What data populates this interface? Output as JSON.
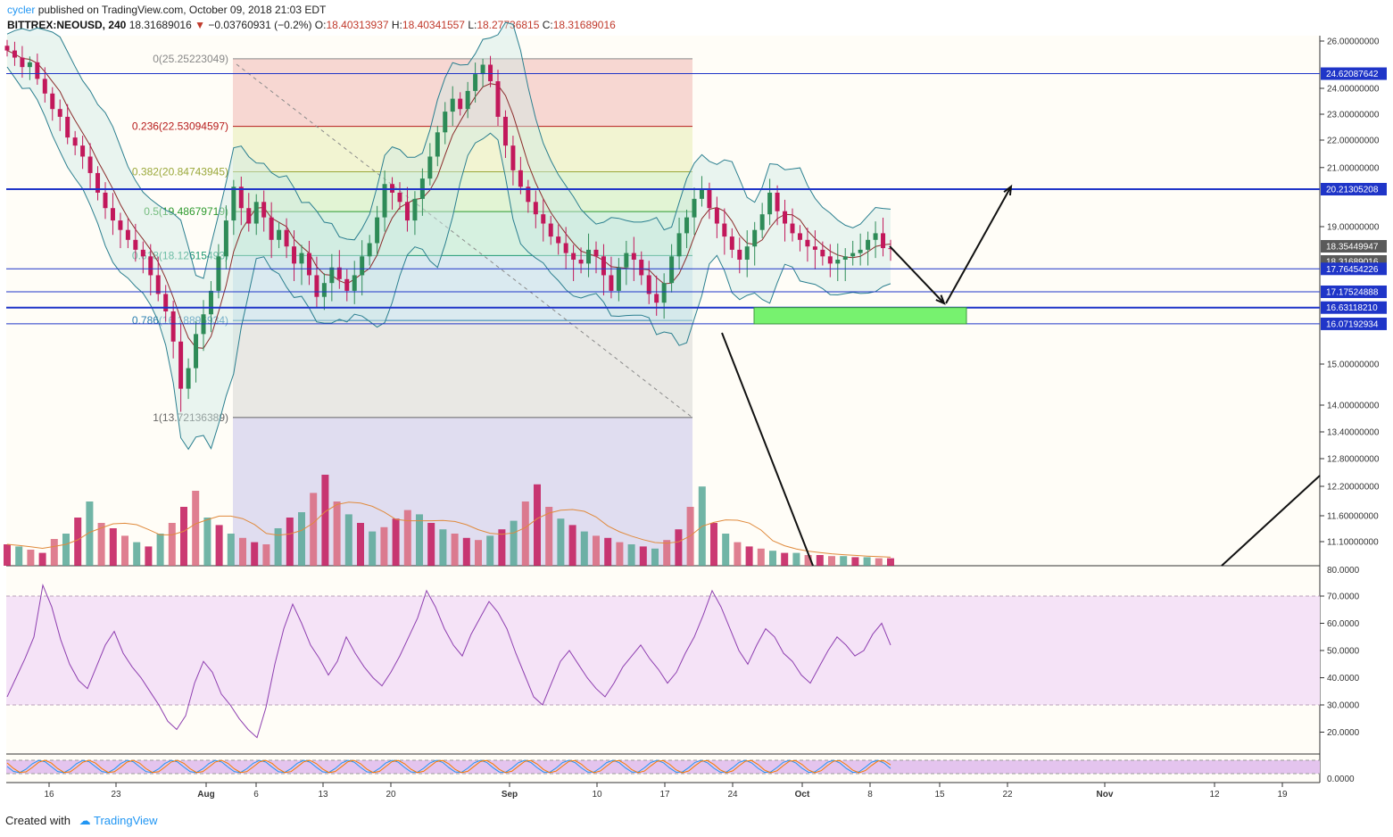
{
  "header": {
    "author": "cycler",
    "published": "published on TradingView.com, October 09, 2018 21:03 EDT",
    "symbol": "BITTREX:NEOUSD, 240",
    "last": "18.31689016",
    "change_arrow": "▼",
    "change": "−0.03760931 (−0.2%)",
    "o_label": "O:",
    "o": "18.40313937",
    "h_label": "H:",
    "h": "18.40341557",
    "l_label": "L:",
    "l": "18.27736815",
    "c_label": "C:",
    "c": "18.31689016"
  },
  "footer": {
    "created_with": "Created with",
    "brand": "TradingView"
  },
  "colors": {
    "background": "#fffdf7",
    "candle_up": "#2e8b57",
    "candle_down": "#c2185b",
    "bollinger": "#2b7f8f",
    "sma": "#8b2c2c",
    "hline": "#1f35c8",
    "tag_blue": "#1f35c8",
    "tag_dark": "#5a5a5a",
    "target_zone": "#77f26f",
    "rsi": "#8e3fb0",
    "rsi_band": "#f5e3f7",
    "stoch_band": "#e4c4ee"
  },
  "chart_data": {
    "type": "candlestick",
    "symbol": "BITTREX:NEOUSD",
    "interval": "240",
    "price_axis": {
      "ticks": [
        "26.00000000",
        "24.00000000",
        "23.00000000",
        "22.00000000",
        "21.00000000",
        "19.00000000",
        "15.00000000",
        "14.00000000",
        "13.40000000",
        "12.80000000",
        "12.20000000",
        "11.60000000",
        "11.10000000"
      ]
    },
    "volume_axis_label": "80.0000",
    "rsi_axis": {
      "ticks": [
        "70.0000",
        "60.0000",
        "50.0000",
        "40.0000",
        "30.0000",
        "20.0000"
      ]
    },
    "stoch_axis_label": "0.0000",
    "x_ticks": [
      "16",
      "23",
      "Aug",
      "6",
      "13",
      "20",
      "Sep",
      "10",
      "17",
      "24",
      "Oct",
      "8",
      "15",
      "22",
      "Nov",
      "12",
      "19"
    ],
    "fibonacci": [
      {
        "label": "0(25.25223049)",
        "ratio": 0,
        "price": 25.25223049,
        "color": "#888888",
        "fill": "#f4c9c6"
      },
      {
        "label": "0.236(22.53094597)",
        "ratio": 0.236,
        "price": 22.53094597,
        "color": "#b71c1c",
        "fill": "#eef0c6"
      },
      {
        "label": "0.382(20.84743945)",
        "ratio": 0.382,
        "price": 20.84743945,
        "color": "#9aa83a",
        "fill": "#d8f0c8"
      },
      {
        "label": "0.5(19.48679719)",
        "ratio": 0.5,
        "price": 19.48679719,
        "color": "#2e9a2e",
        "fill": "#c8ecd8"
      },
      {
        "label": "0.618(18.12615493)",
        "ratio": 0.618,
        "price": 18.12615493,
        "color": "#1f9a73",
        "fill": "#cde3ee"
      },
      {
        "label": "0.786(16.18896934)",
        "ratio": 0.786,
        "price": 16.18896934,
        "color": "#2b7fb0",
        "fill": "#e2e0de"
      },
      {
        "label": "1(13.72136389)",
        "ratio": 1,
        "price": 13.72136389,
        "color": "#666666",
        "fill": "#d5d2ee"
      }
    ],
    "horizontal_levels": [
      "24.62087642",
      "20.21305208",
      "17.76454226",
      "17.17524888",
      "16.63118210",
      "16.07192934"
    ],
    "price_tags": [
      {
        "text": "24.62087642",
        "kind": "blue"
      },
      {
        "text": "20.21305208",
        "kind": "blue"
      },
      {
        "text": "18.35449947",
        "kind": "dark"
      },
      {
        "text": "18.31689016",
        "kind": "dark"
      },
      {
        "text": "17.76454226",
        "kind": "blue"
      },
      {
        "text": "17.17524888",
        "kind": "blue"
      },
      {
        "text": "16.63118210",
        "kind": "blue"
      },
      {
        "text": "16.07192934",
        "kind": "blue"
      }
    ],
    "target_zone": {
      "low": 16.07192934,
      "high": 16.6311821
    },
    "closes": [
      25.6,
      25.3,
      24.9,
      25.1,
      24.4,
      23.8,
      23.2,
      22.9,
      22.1,
      21.8,
      21.4,
      20.8,
      20.1,
      19.6,
      19.2,
      18.9,
      18.6,
      18.3,
      18.1,
      17.6,
      17.1,
      16.5,
      15.6,
      14.4,
      14.9,
      15.8,
      16.4,
      17.2,
      18.1,
      19.2,
      20.3,
      19.6,
      19.1,
      19.8,
      19.3,
      18.6,
      18.9,
      18.4,
      17.9,
      18.2,
      17.6,
      17.0,
      17.4,
      17.8,
      17.5,
      17.2,
      17.6,
      18.1,
      18.5,
      19.3,
      20.4,
      20.1,
      19.8,
      19.2,
      19.9,
      20.6,
      21.4,
      22.3,
      23.1,
      23.6,
      23.2,
      23.9,
      24.6,
      25.0,
      24.3,
      22.9,
      21.8,
      20.9,
      20.3,
      19.8,
      19.4,
      19.1,
      18.7,
      18.5,
      18.2,
      18.0,
      17.9,
      18.3,
      18.1,
      17.6,
      17.2,
      17.8,
      18.2,
      18.0,
      17.6,
      17.1,
      16.8,
      17.4,
      18.1,
      18.8,
      19.3,
      19.9,
      20.2,
      19.6,
      19.1,
      18.7,
      18.3,
      18.0,
      18.4,
      18.9,
      19.4,
      20.1,
      19.5,
      19.1,
      18.8,
      18.6,
      18.4,
      18.3,
      18.1,
      17.9,
      18.0,
      18.1,
      18.2,
      18.3,
      18.6,
      18.8,
      18.35,
      18.32
    ],
    "rsi": [
      33,
      40,
      47,
      55,
      74,
      66,
      54,
      45,
      39,
      36,
      44,
      52,
      57,
      49,
      44,
      40,
      35,
      30,
      24,
      21,
      26,
      38,
      46,
      42,
      34,
      30,
      25,
      21,
      18,
      29,
      45,
      58,
      67,
      60,
      52,
      47,
      41,
      46,
      55,
      49,
      44,
      40,
      37,
      42,
      48,
      55,
      62,
      72,
      66,
      58,
      52,
      48,
      56,
      62,
      68,
      64,
      58,
      49,
      41,
      33,
      30,
      38,
      46,
      50,
      45,
      40,
      36,
      33,
      38,
      44,
      48,
      52,
      47,
      43,
      38,
      42,
      49,
      55,
      63,
      72,
      66,
      58,
      50,
      45,
      52,
      58,
      55,
      49,
      46,
      41,
      38,
      44,
      50,
      55,
      52,
      48,
      50,
      56,
      60,
      52
    ],
    "volume": [
      20,
      18,
      15,
      12,
      25,
      30,
      45,
      60,
      40,
      35,
      28,
      22,
      18,
      30,
      40,
      55,
      70,
      45,
      38,
      30,
      26,
      22,
      20,
      35,
      45,
      50,
      68,
      85,
      60,
      48,
      40,
      32,
      36,
      44,
      52,
      48,
      40,
      34,
      30,
      26,
      24,
      28,
      34,
      42,
      60,
      76,
      55,
      44,
      38,
      32,
      28,
      26,
      22,
      20,
      18,
      16,
      24,
      34,
      55,
      74,
      40,
      30,
      22,
      18,
      16,
      14,
      12,
      12,
      10,
      10,
      9,
      9,
      8,
      8,
      7,
      7
    ]
  }
}
